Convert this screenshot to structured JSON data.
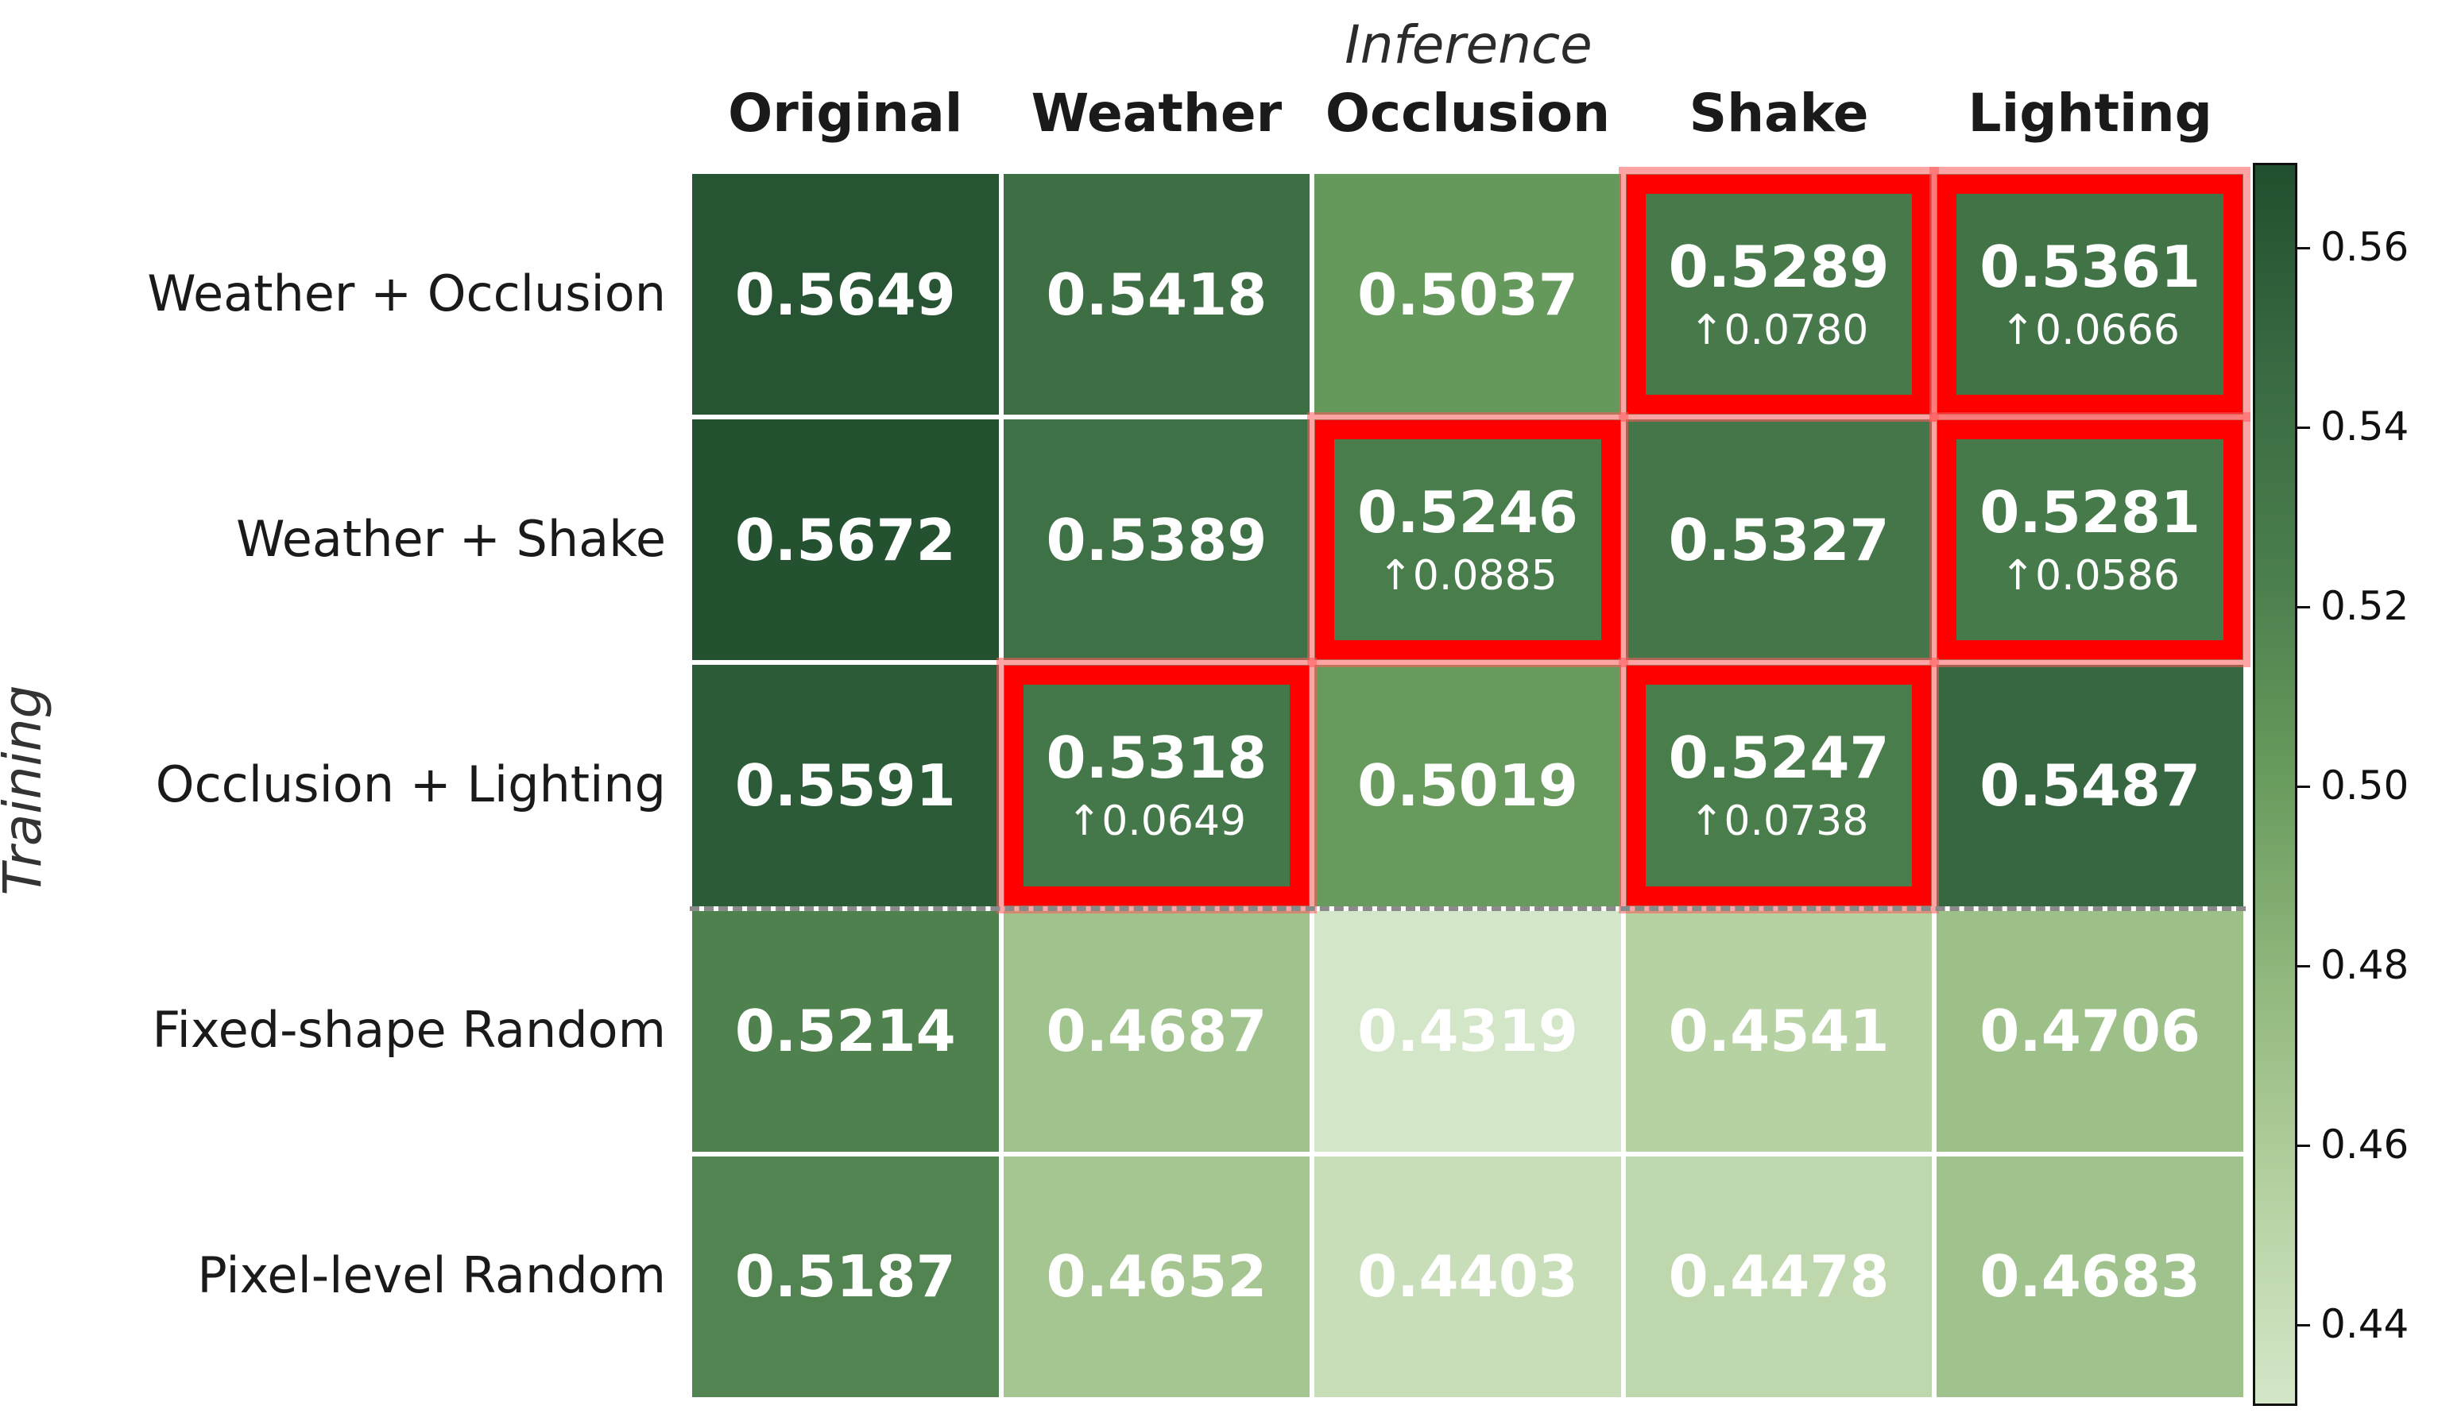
{
  "chart_data": {
    "type": "heatmap",
    "title": "",
    "xlabel": "Inference",
    "ylabel": "Training",
    "x_categories": [
      "Original",
      "Weather",
      "Occlusion",
      "Shake",
      "Lighting"
    ],
    "y_categories": [
      "Weather + Occlusion",
      "Weather + Shake",
      "Occlusion + Lighting",
      "Fixed-shape Random",
      "Pixel-level Random"
    ],
    "values": [
      [
        0.5649,
        0.5418,
        0.5037,
        0.5289,
        0.5361
      ],
      [
        0.5672,
        0.5389,
        0.5246,
        0.5327,
        0.5281
      ],
      [
        0.5591,
        0.5318,
        0.5019,
        0.5247,
        0.5487
      ],
      [
        0.5214,
        0.4687,
        0.4319,
        0.4541,
        0.4706
      ],
      [
        0.5187,
        0.4652,
        0.4403,
        0.4478,
        0.4683
      ]
    ],
    "highlights": [
      {
        "row": 0,
        "col": 3,
        "delta": "↑0.0780"
      },
      {
        "row": 0,
        "col": 4,
        "delta": "↑0.0666"
      },
      {
        "row": 1,
        "col": 2,
        "delta": "↑0.0885"
      },
      {
        "row": 1,
        "col": 4,
        "delta": "↑0.0586"
      },
      {
        "row": 2,
        "col": 1,
        "delta": "↑0.0649"
      },
      {
        "row": 2,
        "col": 3,
        "delta": "↑0.0738"
      }
    ],
    "separator_after_row": 2,
    "colorbar": {
      "vmin": 0.431,
      "vmax": 0.5695,
      "ticks": [
        0.44,
        0.46,
        0.48,
        0.5,
        0.52,
        0.54,
        0.56
      ],
      "tick_labels": [
        "0.44",
        "0.46",
        "0.48",
        "0.50",
        "0.52",
        "0.54",
        "0.56"
      ],
      "colormap": [
        "#d4e7c9",
        "#b6d1a2",
        "#93b97f",
        "#6a9c5e",
        "#4b7e4d",
        "#396a42",
        "#224f2f"
      ]
    },
    "grid": false,
    "legend_position": "right"
  },
  "colors": {
    "highlight_frame": "#ff0000",
    "highlight_glow": "#ff7a7a",
    "separator": "#8a8a8a",
    "cell_text": "#ffffff"
  }
}
